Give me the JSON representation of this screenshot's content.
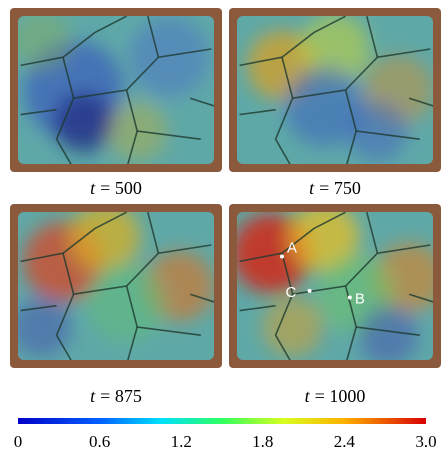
{
  "panels": [
    {
      "var": "t",
      "text": "= 500"
    },
    {
      "var": "t",
      "text": "= 750"
    },
    {
      "var": "t",
      "text": "= 875"
    },
    {
      "var": "t",
      "text": "= 1000",
      "points": [
        {
          "label": "A"
        },
        {
          "label": "B"
        },
        {
          "label": "C"
        }
      ]
    }
  ],
  "colorbar": {
    "lim": [
      0,
      3
    ],
    "ticks": [
      0,
      0.6,
      1.2,
      1.8,
      2.4,
      {
        "value": 3,
        "label": "3.0"
      }
    ]
  }
}
